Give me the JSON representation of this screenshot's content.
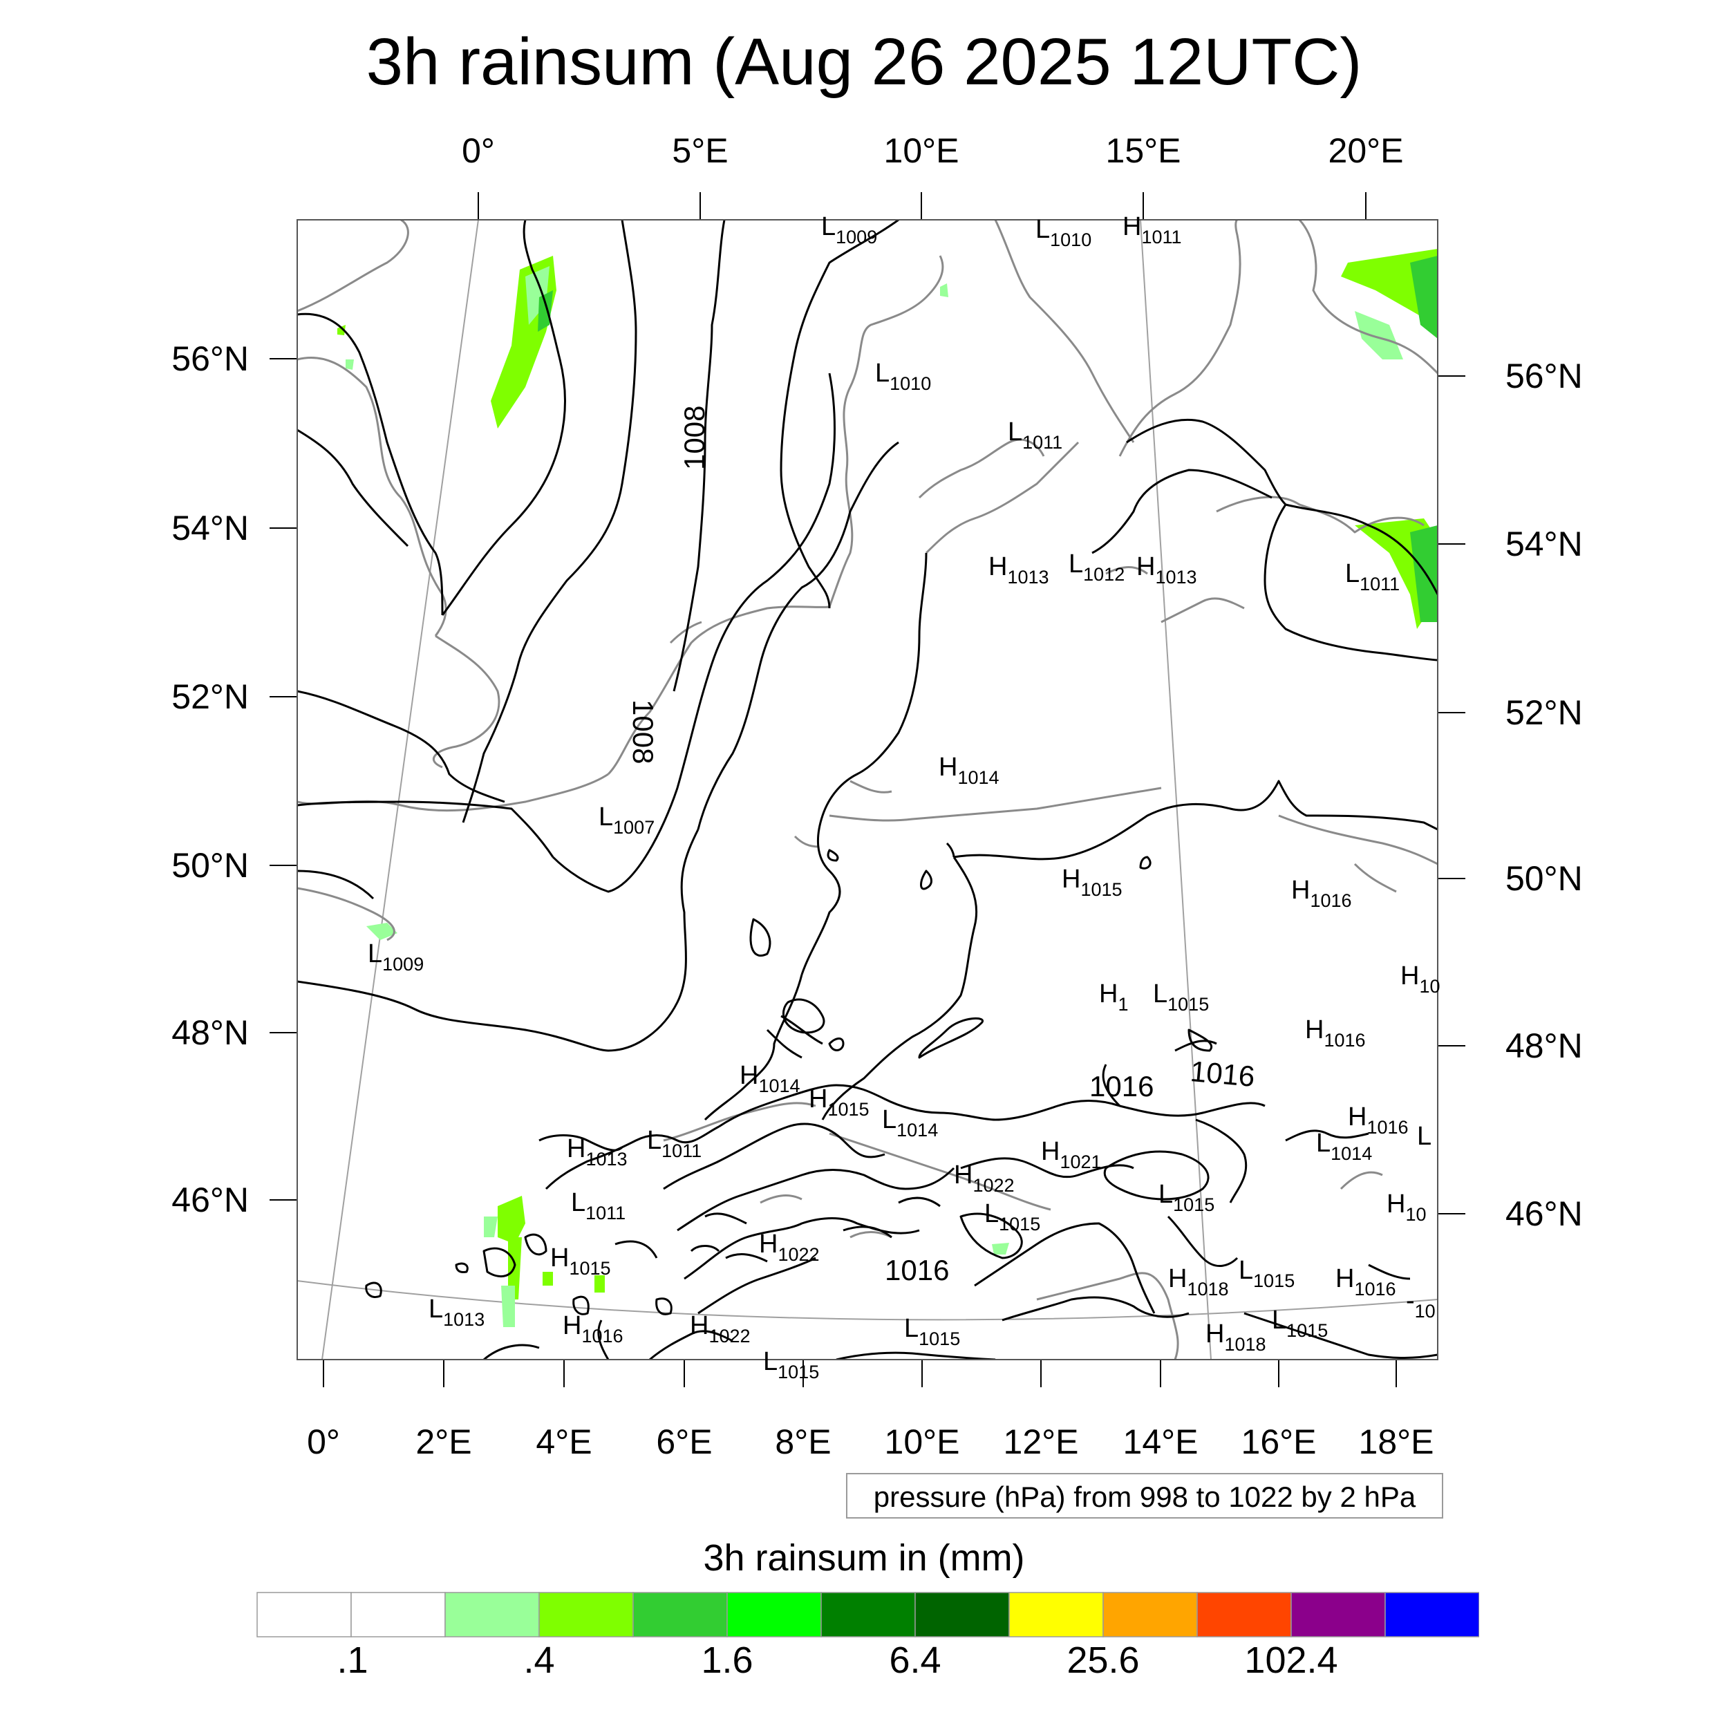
{
  "title": "3h rainsum (Aug 26 2025 12UTC)",
  "axes": {
    "top_lon": [
      "0°",
      "5°E",
      "10°E",
      "15°E",
      "20°E"
    ],
    "bottom_lon": [
      "0°",
      "2°E",
      "4°E",
      "6°E",
      "8°E",
      "10°E",
      "12°E",
      "14°E",
      "16°E",
      "18°E"
    ],
    "left_lat": [
      "56°N",
      "54°N",
      "52°N",
      "50°N",
      "48°N",
      "46°N"
    ],
    "right_lat": [
      "56°N",
      "54°N",
      "52°N",
      "50°N",
      "48°N",
      "46°N"
    ]
  },
  "pressure_note": "pressure (hPa) from 998 to 1022 by 2 hPa",
  "pressure_centers": [
    {
      "t": "L",
      "v": "1009"
    },
    {
      "t": "L",
      "v": "1010"
    },
    {
      "t": "H",
      "v": "1011"
    },
    {
      "t": "L",
      "v": "1010"
    },
    {
      "t": "L",
      "v": "1011"
    },
    {
      "t": "H",
      "v": "1013"
    },
    {
      "t": "L",
      "v": "1012"
    },
    {
      "t": "H",
      "v": "1013"
    },
    {
      "t": "L",
      "v": "1011"
    },
    {
      "t": "H",
      "v": "1014"
    },
    {
      "t": "L",
      "v": "1007"
    },
    {
      "t": "L",
      "v": "1009"
    },
    {
      "t": "H",
      "v": "1015"
    },
    {
      "t": "H",
      "v": "1016"
    },
    {
      "t": "H",
      "v": "10"
    },
    {
      "t": "L",
      "v": "1015"
    },
    {
      "t": "H",
      "v": "1016"
    },
    {
      "t": "H",
      "v": "1"
    },
    {
      "t": "H",
      "v": "1014"
    },
    {
      "t": "H",
      "v": "1015"
    },
    {
      "t": "L",
      "v": "1014"
    },
    {
      "t": "H",
      "v": "1013"
    },
    {
      "t": "L",
      "v": "1011"
    },
    {
      "t": "H",
      "v": "1021"
    },
    {
      "t": "H",
      "v": "1022"
    },
    {
      "t": "L",
      "v": "1015"
    },
    {
      "t": "L",
      "v": "1015"
    },
    {
      "t": "H",
      "v": "1016"
    },
    {
      "t": "L",
      "v": "1014"
    },
    {
      "t": "L",
      "v": ""
    },
    {
      "t": "L",
      "v": "1011"
    },
    {
      "t": "H",
      "v": "1015"
    },
    {
      "t": "H",
      "v": "1022"
    },
    {
      "t": "H",
      "v": "10"
    },
    {
      "t": "L",
      "v": "1013"
    },
    {
      "t": "H",
      "v": "1016"
    },
    {
      "t": "H",
      "v": "1022"
    },
    {
      "t": "L",
      "v": "1015"
    },
    {
      "t": "H",
      "v": "1018"
    },
    {
      "t": "L",
      "v": "1015"
    },
    {
      "t": "H",
      "v": "1016"
    },
    {
      "t": "H",
      "v": "1018"
    },
    {
      "t": "L",
      "v": "1015"
    },
    {
      "t": "L",
      "v": "1015"
    },
    {
      "t": "-",
      "v": "10"
    }
  ],
  "contour_labels": [
    "1008",
    "1008",
    "1016",
    "1016",
    "1016"
  ],
  "colorbar": {
    "title": "3h rainsum in (mm)",
    "labels": [
      ".1",
      ".4",
      "1.6",
      "6.4",
      "25.6",
      "102.4"
    ],
    "colors": [
      "#ffffff",
      "#ffffff",
      "#99ff99",
      "#7fff00",
      "#32cd32",
      "#00ff00",
      "#008000",
      "#006400",
      "#ffff00",
      "#ffa500",
      "#ff4500",
      "#8b008b",
      "#0000ff"
    ]
  }
}
